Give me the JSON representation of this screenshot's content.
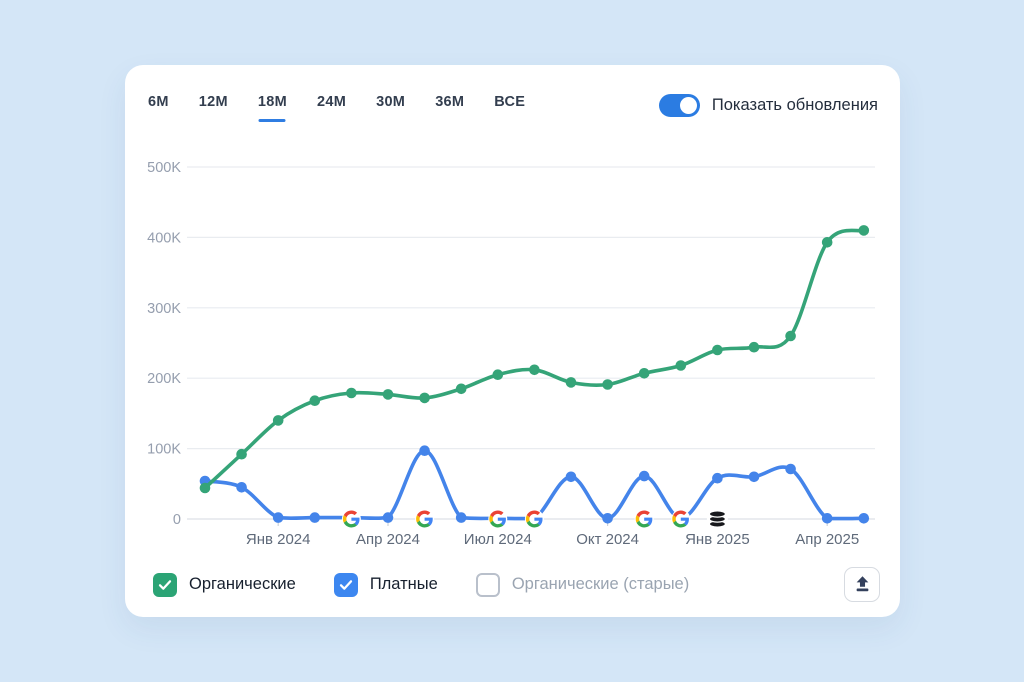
{
  "header": {
    "tabs": [
      {
        "label": "6M",
        "active": false
      },
      {
        "label": "12M",
        "active": false
      },
      {
        "label": "18M",
        "active": true
      },
      {
        "label": "24M",
        "active": false
      },
      {
        "label": "30M",
        "active": false
      },
      {
        "label": "36M",
        "active": false
      },
      {
        "label": "ВСЕ",
        "active": false
      }
    ],
    "toggle": {
      "label": "Показать обновления",
      "on": true
    }
  },
  "chart_data": {
    "type": "line",
    "x": [
      "Ноя 2023",
      "Дек 2023",
      "Янв 2024",
      "Фев 2024",
      "Мар 2024",
      "Апр 2024",
      "Май 2024",
      "Июн 2024",
      "Июл 2024",
      "Авг 2024",
      "Сен 2024",
      "Окт 2024",
      "Ноя 2024",
      "Дек 2024",
      "Янв 2025",
      "Фев 2025",
      "Мар 2025",
      "Апр 2025",
      "Май 2025"
    ],
    "x_axis_ticks": [
      "Янв 2024",
      "Апр 2024",
      "Июл 2024",
      "Окт 2024",
      "Янв 2025",
      "Апр 2025"
    ],
    "x_tick_indices": [
      2,
      5,
      8,
      11,
      14,
      17
    ],
    "y_ticks": [
      "0",
      "100K",
      "200K",
      "300K",
      "400K",
      "500K"
    ],
    "ylim": [
      0,
      500000
    ],
    "grid": true,
    "series": [
      {
        "name": "Платные",
        "color": "#4484ea",
        "values": [
          54000,
          45000,
          2000,
          2000,
          2000,
          2000,
          97000,
          2000,
          1000,
          1000,
          60000,
          1000,
          61000,
          1000,
          58000,
          60000,
          71000,
          1000,
          1000
        ]
      },
      {
        "name": "Органические",
        "color": "#35a478",
        "values": [
          44000,
          92000,
          140000,
          168000,
          179000,
          177000,
          172000,
          185000,
          205000,
          212000,
          194000,
          191000,
          207000,
          218000,
          240000,
          244000,
          260000,
          393000,
          410000
        ]
      }
    ],
    "markers": {
      "google_update_indices": [
        4,
        6,
        8,
        9,
        12,
        13
      ],
      "database_marker_index": 14
    },
    "legend_position": "bottom"
  },
  "legend": {
    "items": [
      {
        "label": "Органические",
        "checked": true,
        "color": "#2ba475"
      },
      {
        "label": "Платные",
        "checked": true,
        "color": "#3d87f0"
      },
      {
        "label": "Органические (старые)",
        "checked": false,
        "color": null
      }
    ]
  },
  "export_button": {
    "icon": "upload"
  },
  "colors": {
    "background": "#d4e6f7",
    "card": "#ffffff",
    "accent_blue": "#2f7de2",
    "organic_green": "#35a478",
    "paid_blue": "#4484ea"
  }
}
